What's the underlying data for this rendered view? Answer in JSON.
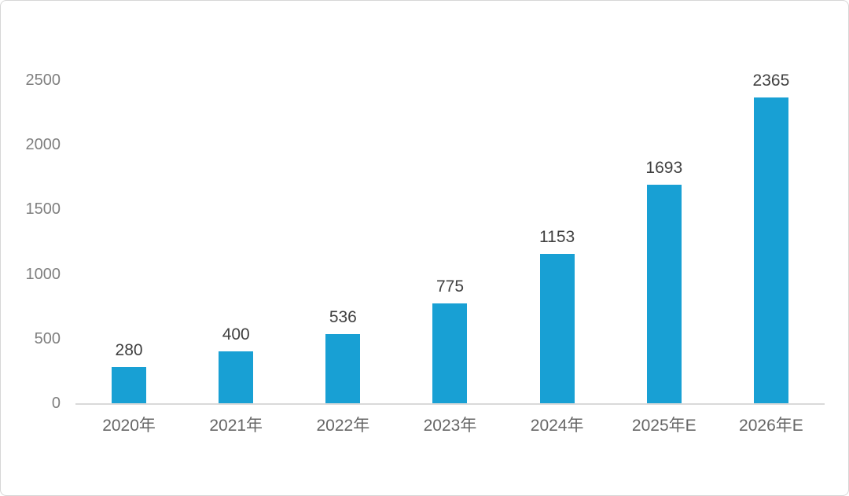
{
  "frame": {
    "background": "#ffffff",
    "border_color": "#d6d6d6"
  },
  "chart_data": {
    "type": "bar",
    "title": "",
    "xlabel": "",
    "ylabel": "",
    "categories": [
      "2020年",
      "2021年",
      "2022年",
      "2023年",
      "2024年",
      "2025年E",
      "2026年E"
    ],
    "values": [
      280,
      400,
      536,
      775,
      1153,
      1693,
      2365
    ],
    "data_labels": [
      "280",
      "400",
      "536",
      "775",
      "1153",
      "1693",
      "2365"
    ],
    "ylim": [
      0,
      2500
    ],
    "yticks": [
      0,
      500,
      1000,
      1500,
      2000,
      2500
    ],
    "grid": false,
    "legend": "none",
    "bar_color": "#18A0D4",
    "value_label_color": "#404040",
    "ytick_color": "#7f7f7f",
    "xtick_color": "#666666",
    "axis_line_color": "#d9d9d9"
  }
}
